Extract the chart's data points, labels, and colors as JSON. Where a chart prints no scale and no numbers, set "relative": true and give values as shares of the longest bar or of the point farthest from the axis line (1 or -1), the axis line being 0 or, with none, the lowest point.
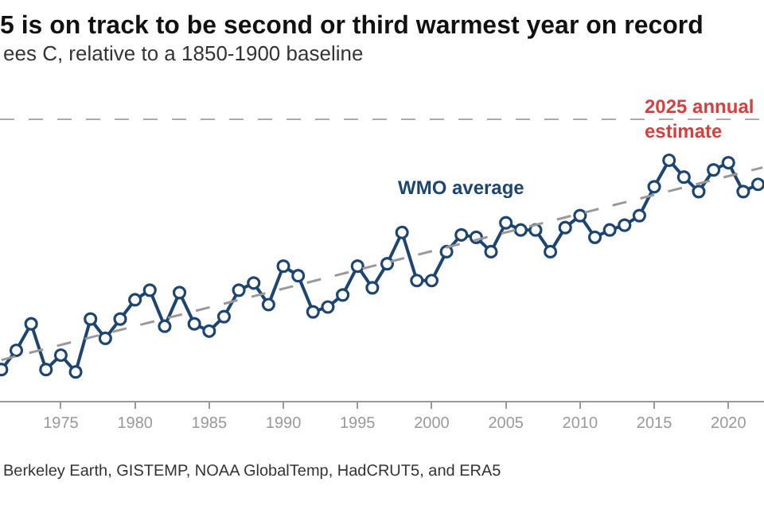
{
  "chart_data": {
    "type": "line",
    "title": "5 is on track to be second or third warmest year on record",
    "subtitle": "ees C, relative to a 1850-1900 baseline",
    "relative": true,
    "x": [
      1971,
      1972,
      1973,
      1974,
      1975,
      1976,
      1977,
      1978,
      1979,
      1980,
      1981,
      1982,
      1983,
      1984,
      1985,
      1986,
      1987,
      1988,
      1989,
      1990,
      1991,
      1992,
      1993,
      1994,
      1995,
      1996,
      1997,
      1998,
      1999,
      2000,
      2001,
      2002,
      2003,
      2004,
      2005,
      2006,
      2007,
      2008,
      2009,
      2010,
      2011,
      2012,
      2013,
      2014,
      2015,
      2016,
      2017,
      2018,
      2019,
      2020,
      2021,
      2022
    ],
    "xlim": [
      1970.9,
      2022.4
    ],
    "xticks": [
      1975,
      1980,
      1985,
      1990,
      1995,
      2000,
      2005,
      2010,
      2015,
      2020
    ],
    "series": [
      {
        "name": "WMO average",
        "color": "#1d4571",
        "marker": "circle",
        "line_style": "solid",
        "values": [
          0.13,
          0.21,
          0.32,
          0.13,
          0.19,
          0.12,
          0.34,
          0.26,
          0.34,
          0.42,
          0.46,
          0.31,
          0.45,
          0.32,
          0.29,
          0.35,
          0.46,
          0.49,
          0.4,
          0.56,
          0.52,
          0.37,
          0.39,
          0.44,
          0.56,
          0.47,
          0.57,
          0.7,
          0.5,
          0.5,
          0.62,
          0.69,
          0.68,
          0.62,
          0.74,
          0.71,
          0.71,
          0.62,
          0.72,
          0.77,
          0.68,
          0.71,
          0.73,
          0.77,
          0.89,
          1.0,
          0.93,
          0.87,
          0.96,
          0.99,
          0.87,
          0.9
        ]
      },
      {
        "type": "line",
        "color": "#999999",
        "marker": "none",
        "line_style": "dashed",
        "x": [
          1971,
          2022.3
        ],
        "values": [
          0.17,
          0.97
        ]
      }
    ],
    "ref_lines": [
      {
        "axis": "y",
        "value": 1.17,
        "color": "#aaaaaa",
        "line_style": "dashed"
      }
    ],
    "annotations": [
      "2025 annual estimate",
      "Berkeley Earth, GISTEMP, NOAA GlobalTemp, HadCRUT5, and ERA5"
    ],
    "legend": false
  }
}
